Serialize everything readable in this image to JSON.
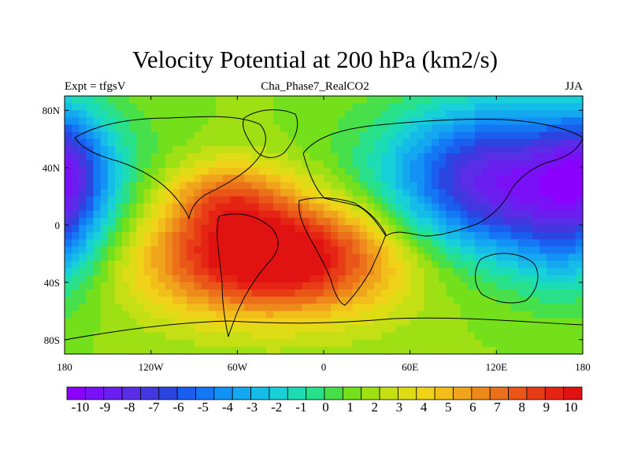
{
  "header": {
    "title": "Velocity Potential at 200 hPa (km2/s)",
    "left_label": "Expt = tfgsV",
    "center_label": "Cha_Phase7_RealCO2",
    "right_label": "JJA"
  },
  "chart_data": {
    "type": "heatmap",
    "title": "Velocity Potential at 200 hPa (km2/s)",
    "xlabel": "",
    "ylabel": "",
    "xlim": [
      -180,
      180
    ],
    "ylim": [
      -90,
      90
    ],
    "x_ticks": [
      {
        "value": -180,
        "label": "180"
      },
      {
        "value": -120,
        "label": "120W"
      },
      {
        "value": -60,
        "label": "60W"
      },
      {
        "value": 0,
        "label": "0"
      },
      {
        "value": 60,
        "label": "60E"
      },
      {
        "value": 120,
        "label": "120E"
      },
      {
        "value": 180,
        "label": "180"
      }
    ],
    "y_ticks": [
      {
        "value": 80,
        "label": "80N"
      },
      {
        "value": 40,
        "label": "40N"
      },
      {
        "value": 0,
        "label": "0"
      },
      {
        "value": -40,
        "label": "40S"
      },
      {
        "value": -80,
        "label": "80S"
      }
    ],
    "field_centers": [
      {
        "lon": -35,
        "lat": -22,
        "value": 10,
        "sx": 62,
        "sy": 28
      },
      {
        "lon": -68,
        "lat": 20,
        "value": 4,
        "sx": 30,
        "sy": 18
      },
      {
        "lon": 125,
        "lat": 30,
        "value": -10,
        "sx": 58,
        "sy": 38
      },
      {
        "lon": 175,
        "lat": -5,
        "value": -3,
        "sx": 25,
        "sy": 35
      },
      {
        "lon": -178,
        "lat": 45,
        "value": -3.5,
        "sx": 18,
        "sy": 28
      }
    ],
    "colorbar": {
      "levels": [
        -10,
        -9,
        -8,
        -7,
        -6,
        -5,
        -4,
        -3,
        -2,
        -1,
        0,
        1,
        2,
        3,
        4,
        5,
        6,
        7,
        8,
        9,
        10
      ],
      "labels": [
        "-10",
        "-9",
        "-8",
        "-7",
        "-6",
        "-5",
        "-4",
        "-3",
        "-2",
        "-1",
        "0",
        "1",
        "2",
        "3",
        "4",
        "5",
        "6",
        "7",
        "8",
        "9",
        "10"
      ],
      "colors": [
        "#8c00ff",
        "#7a10f5",
        "#6a1ef0",
        "#5a2ee8",
        "#4338e0",
        "#2b46e0",
        "#1a5ef0",
        "#1478f5",
        "#1292f5",
        "#14a8f0",
        "#16bce8",
        "#18d0d8",
        "#1cdcb4",
        "#28e08a",
        "#48e04a",
        "#74e01c",
        "#9ee014",
        "#c4e014",
        "#dedc14",
        "#f0d218",
        "#f2be1a",
        "#f0a41c",
        "#ee8a1c",
        "#ec701a",
        "#ea5618",
        "#e83c16",
        "#e62414",
        "#e01212"
      ]
    }
  }
}
